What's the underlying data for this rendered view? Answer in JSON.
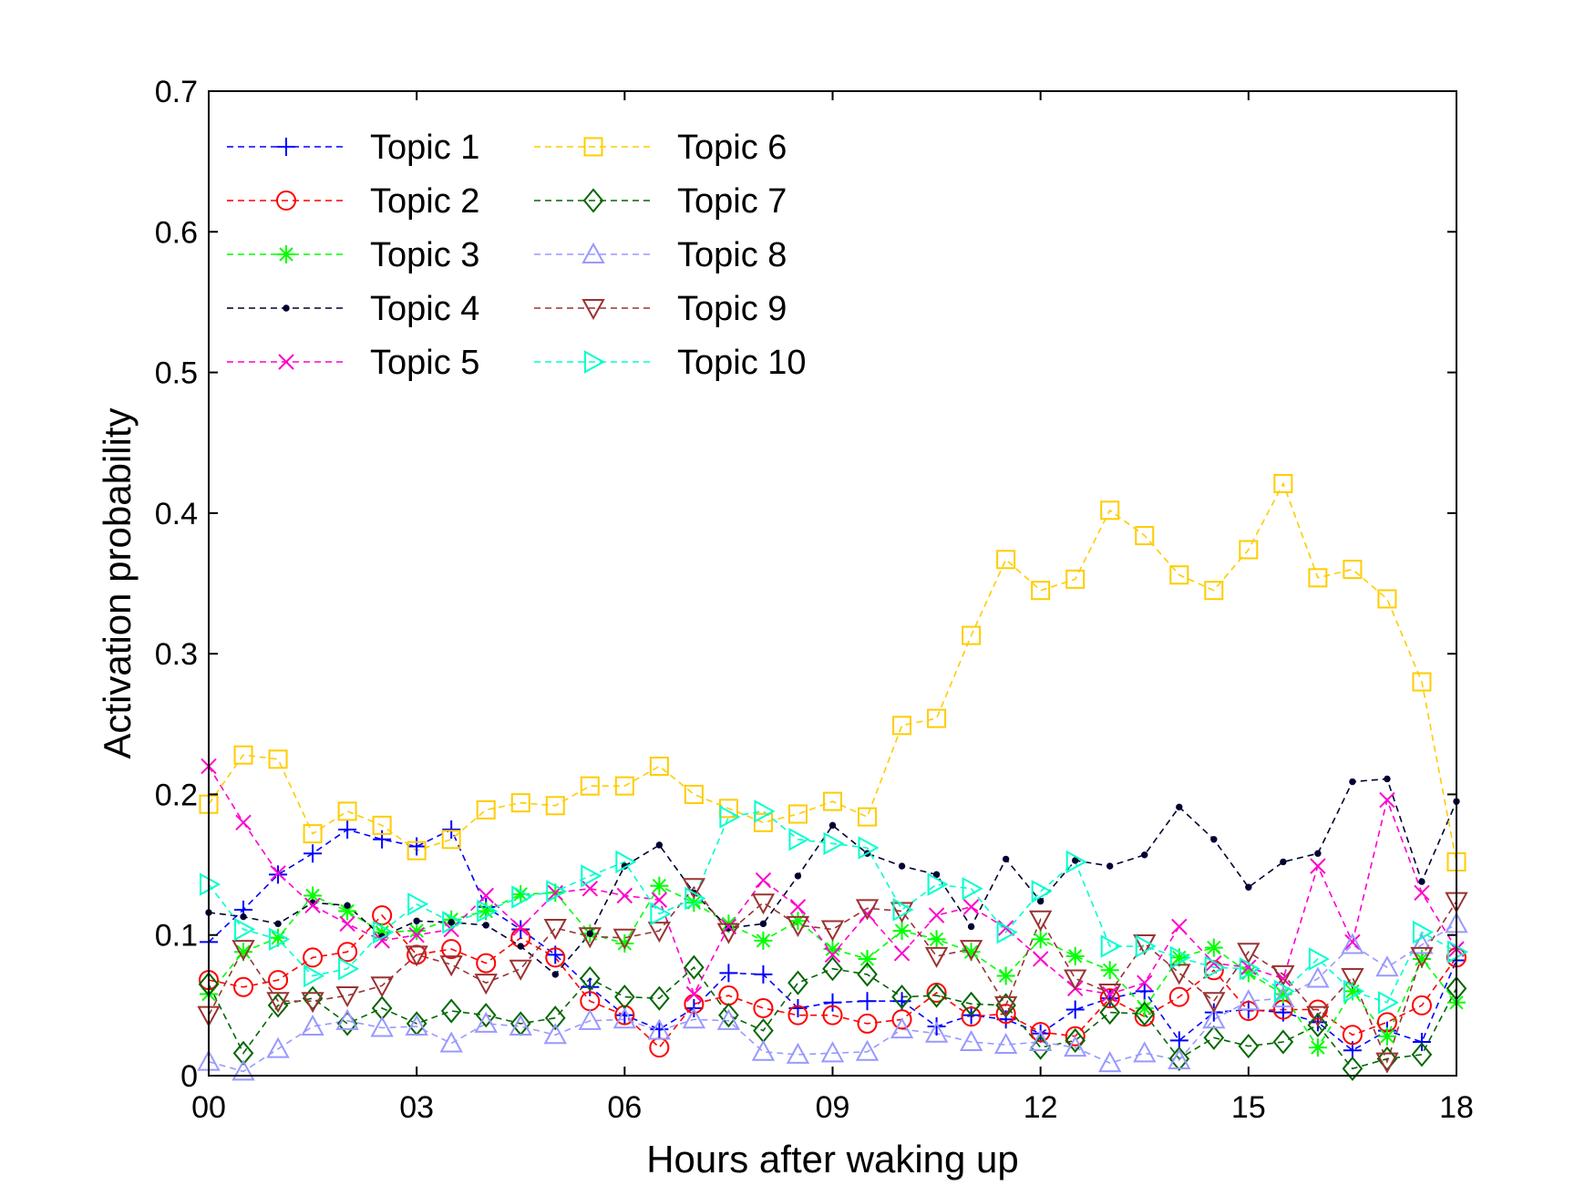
{
  "chart_data": {
    "type": "line",
    "xlabel": "Hours after waking up",
    "ylabel": "Activation probability",
    "xlim": [
      0,
      18
    ],
    "ylim": [
      0,
      0.7
    ],
    "x_tick_labels": [
      "00",
      "03",
      "06",
      "09",
      "12",
      "15",
      "18"
    ],
    "y_tick_labels": [
      "0",
      "0.1",
      "0.2",
      "0.3",
      "0.4",
      "0.5",
      "0.6",
      "0.7"
    ],
    "grid": false,
    "legend_position": "top-left",
    "x": [
      0,
      0.5,
      1,
      1.5,
      2,
      2.5,
      3,
      3.5,
      4,
      4.5,
      5,
      5.5,
      6,
      6.5,
      7,
      7.5,
      8,
      8.5,
      9,
      9.5,
      10,
      10.5,
      11,
      11.5,
      12,
      12.5,
      13,
      13.5,
      14,
      14.5,
      15,
      15.5,
      16,
      16.5,
      17,
      17.5,
      18
    ],
    "series": [
      {
        "name": "Topic 1",
        "color": "#0000ff",
        "marker": "plus",
        "values": [
          0.095,
          0.118,
          0.143,
          0.158,
          0.175,
          0.168,
          0.163,
          0.175,
          0.12,
          0.104,
          0.086,
          0.063,
          0.043,
          0.033,
          0.048,
          0.073,
          0.072,
          0.048,
          0.052,
          0.053,
          0.053,
          0.035,
          0.043,
          0.04,
          0.03,
          0.047,
          0.055,
          0.06,
          0.025,
          0.045,
          0.047,
          0.045,
          0.038,
          0.018,
          0.032,
          0.024,
          0.082
        ]
      },
      {
        "name": "Topic 2",
        "color": "#ff0000",
        "marker": "circle",
        "values": [
          0.068,
          0.063,
          0.068,
          0.084,
          0.088,
          0.114,
          0.086,
          0.09,
          0.08,
          0.098,
          0.084,
          0.053,
          0.043,
          0.02,
          0.051,
          0.057,
          0.048,
          0.043,
          0.043,
          0.037,
          0.04,
          0.059,
          0.042,
          0.044,
          0.031,
          0.028,
          0.055,
          0.042,
          0.056,
          0.075,
          0.046,
          0.047,
          0.047,
          0.029,
          0.038,
          0.05,
          0.084
        ]
      },
      {
        "name": "Topic 3",
        "color": "#00ff00",
        "marker": "asterisk",
        "values": [
          0.058,
          0.088,
          0.098,
          0.128,
          0.117,
          0.102,
          0.103,
          0.111,
          0.117,
          0.129,
          0.13,
          0.101,
          0.094,
          0.135,
          0.123,
          0.108,
          0.096,
          0.11,
          0.09,
          0.083,
          0.103,
          0.097,
          0.088,
          0.071,
          0.097,
          0.085,
          0.075,
          0.048,
          0.084,
          0.091,
          0.073,
          0.058,
          0.02,
          0.06,
          0.028,
          0.083,
          0.052
        ]
      },
      {
        "name": "Topic 4",
        "color": "#000033",
        "marker": "dot",
        "values": [
          0.116,
          0.113,
          0.108,
          0.123,
          0.121,
          0.099,
          0.11,
          0.109,
          0.107,
          0.092,
          0.072,
          0.101,
          0.149,
          0.164,
          0.13,
          0.105,
          0.108,
          0.142,
          0.178,
          0.158,
          0.149,
          0.143,
          0.106,
          0.154,
          0.124,
          0.153,
          0.149,
          0.157,
          0.191,
          0.168,
          0.134,
          0.152,
          0.158,
          0.209,
          0.211,
          0.138,
          0.195
        ]
      },
      {
        "name": "Topic 5",
        "color": "#ff00cc",
        "marker": "x",
        "values": [
          0.22,
          0.18,
          0.144,
          0.121,
          0.108,
          0.096,
          0.1,
          0.104,
          0.128,
          0.105,
          0.13,
          0.133,
          0.128,
          0.125,
          0.058,
          0.106,
          0.139,
          0.12,
          0.086,
          0.115,
          0.087,
          0.114,
          0.12,
          0.105,
          0.083,
          0.062,
          0.058,
          0.066,
          0.106,
          0.08,
          0.077,
          0.069,
          0.149,
          0.095,
          0.196,
          0.13,
          0.09
        ]
      },
      {
        "name": "Topic 6",
        "color": "#ffcc00",
        "marker": "square",
        "values": [
          0.193,
          0.228,
          0.225,
          0.172,
          0.188,
          0.178,
          0.16,
          0.168,
          0.189,
          0.194,
          0.192,
          0.206,
          0.206,
          0.22,
          0.2,
          0.19,
          0.18,
          0.186,
          0.195,
          0.184,
          0.249,
          0.254,
          0.313,
          0.367,
          0.345,
          0.353,
          0.402,
          0.384,
          0.356,
          0.345,
          0.374,
          0.421,
          0.354,
          0.36,
          0.339,
          0.28,
          0.152
        ]
      },
      {
        "name": "Topic 7",
        "color": "#006600",
        "marker": "diamond",
        "values": [
          0.065,
          0.016,
          0.05,
          0.055,
          0.037,
          0.048,
          0.037,
          0.046,
          0.043,
          0.037,
          0.041,
          0.069,
          0.056,
          0.055,
          0.077,
          0.043,
          0.032,
          0.066,
          0.076,
          0.072,
          0.056,
          0.057,
          0.051,
          0.05,
          0.02,
          0.025,
          0.045,
          0.044,
          0.012,
          0.027,
          0.021,
          0.024,
          0.036,
          0.005,
          0.012,
          0.015,
          0.062
        ]
      },
      {
        "name": "Topic 8",
        "color": "#9999ff",
        "marker": "triangle-up",
        "values": [
          0.01,
          0.003,
          0.019,
          0.035,
          0.039,
          0.034,
          0.035,
          0.023,
          0.037,
          0.035,
          0.029,
          0.039,
          0.04,
          0.032,
          0.04,
          0.039,
          0.017,
          0.015,
          0.016,
          0.017,
          0.033,
          0.03,
          0.024,
          0.022,
          0.024,
          0.02,
          0.009,
          0.016,
          0.011,
          0.04,
          0.053,
          0.055,
          0.069,
          0.093,
          0.077,
          0.093,
          0.108
        ]
      },
      {
        "name": "Topic 9",
        "color": "#993333",
        "marker": "triangle-down",
        "values": [
          0.043,
          0.09,
          0.053,
          0.053,
          0.057,
          0.064,
          0.086,
          0.079,
          0.066,
          0.076,
          0.105,
          0.099,
          0.098,
          0.103,
          0.134,
          0.102,
          0.123,
          0.107,
          0.104,
          0.119,
          0.117,
          0.085,
          0.09,
          0.05,
          0.111,
          0.069,
          0.059,
          0.094,
          0.073,
          0.053,
          0.088,
          0.072,
          0.043,
          0.07,
          0.01,
          0.085,
          0.124
        ]
      },
      {
        "name": "Topic 10",
        "color": "#00ffcc",
        "marker": "triangle-right",
        "values": [
          0.136,
          0.104,
          0.097,
          0.071,
          0.076,
          0.102,
          0.122,
          0.109,
          0.117,
          0.127,
          0.131,
          0.142,
          0.152,
          0.115,
          0.126,
          0.184,
          0.188,
          0.168,
          0.165,
          0.162,
          0.118,
          0.136,
          0.133,
          0.102,
          0.131,
          0.152,
          0.092,
          0.092,
          0.084,
          0.077,
          0.076,
          0.06,
          0.083,
          0.06,
          0.052,
          0.102,
          0.088
        ]
      }
    ]
  }
}
